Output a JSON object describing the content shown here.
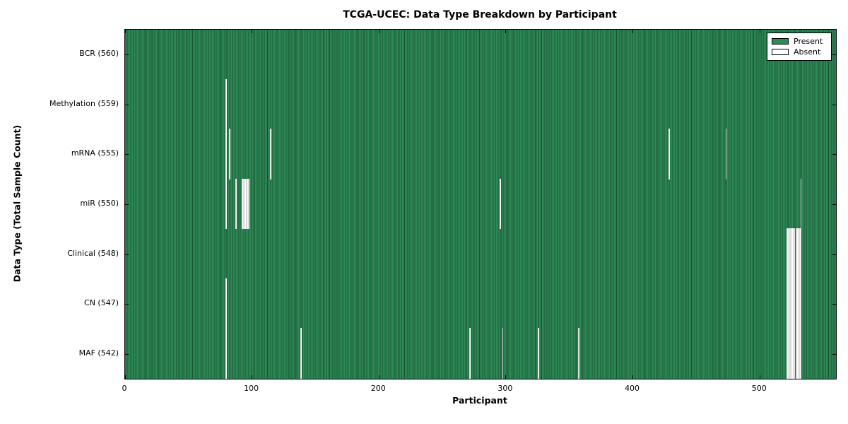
{
  "chart_data": {
    "type": "heatmap",
    "title": "TCGA-UCEC: Data Type Breakdown by Participant",
    "xlabel": "Participant",
    "ylabel": "Data Type (Total Sample Count)",
    "n_participants": 560,
    "x_ticks": [
      0,
      100,
      200,
      300,
      400,
      500
    ],
    "xlim": [
      0,
      560
    ],
    "grid": false,
    "legend_position": "upper right",
    "legend_entries": [
      {
        "label": "Present",
        "color": "#2e8b57"
      },
      {
        "label": "Absent",
        "color": "#ffffff"
      }
    ],
    "colors": {
      "present": "#2e8b57",
      "absent": "#ffffff",
      "cell_edge": "#000000"
    },
    "rows": [
      {
        "label": "BCR (560)",
        "data_type": "BCR",
        "total_samples": 560,
        "absent_participants": []
      },
      {
        "label": "Methylation (559)",
        "data_type": "Methylation",
        "total_samples": 559,
        "absent_participants": [
          79
        ]
      },
      {
        "label": "mRNA (555)",
        "data_type": "mRNA",
        "total_samples": 555,
        "absent_participants": [
          79,
          82,
          114,
          428,
          473
        ]
      },
      {
        "label": "miR (550)",
        "data_type": "miR",
        "total_samples": 550,
        "absent_participants": [
          79,
          87,
          92,
          93,
          94,
          95,
          96,
          97,
          295,
          532
        ]
      },
      {
        "label": "Clinical (548)",
        "data_type": "Clinical",
        "total_samples": 548,
        "absent_participants": [
          521,
          522,
          523,
          524,
          525,
          526,
          527,
          528,
          529,
          530,
          531,
          532
        ]
      },
      {
        "label": "CN (547)",
        "data_type": "CN",
        "total_samples": 547,
        "absent_participants": [
          79,
          521,
          522,
          523,
          524,
          525,
          526,
          527,
          528,
          529,
          530,
          531,
          532
        ]
      },
      {
        "label": "MAF (542)",
        "data_type": "MAF",
        "total_samples": 542,
        "absent_participants": [
          79,
          138,
          271,
          297,
          325,
          357,
          521,
          522,
          523,
          524,
          525,
          526,
          527,
          528,
          529,
          530,
          531,
          532
        ]
      }
    ]
  }
}
